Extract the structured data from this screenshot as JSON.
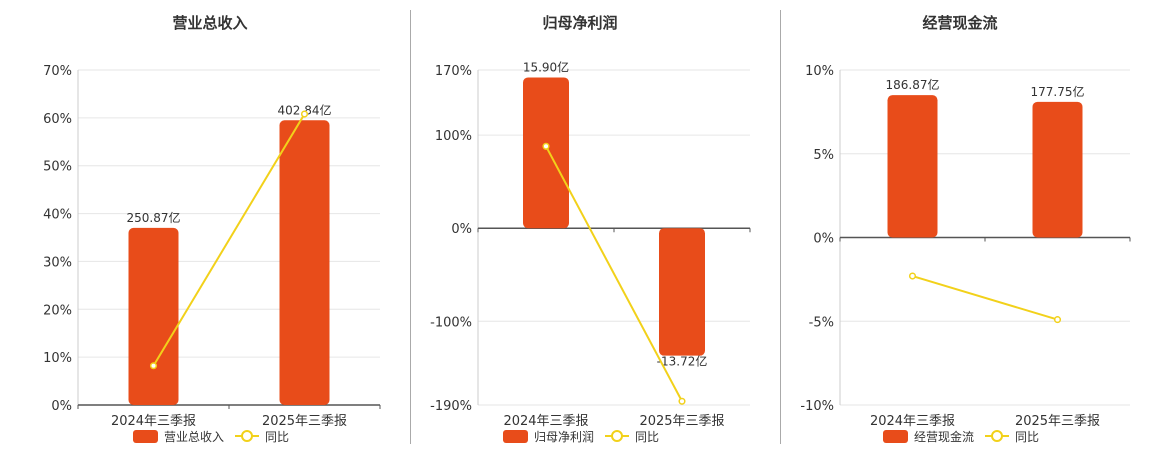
{
  "legend": {
    "growth_label": "同比"
  },
  "colors": {
    "bar": "#E84C1A",
    "line": "#F2D11A",
    "grid": "#e6e6e6",
    "axis": "#555555",
    "divider": "#aaaaaa"
  },
  "chart_data": [
    {
      "type": "bar",
      "title": "营业总收入",
      "categories": [
        "2024年三季报",
        "2025年三季报"
      ],
      "bar_series": {
        "name": "营业总收入",
        "values": [
          37,
          59.5
        ],
        "labels": [
          "250.87亿",
          "402.84亿"
        ]
      },
      "line_series": {
        "name": "同比",
        "values": [
          8.2,
          60.8
        ]
      },
      "yticks": [
        0,
        10,
        20,
        30,
        40,
        50,
        60,
        70
      ],
      "ytick_labels": [
        "0%",
        "10%",
        "20%",
        "30%",
        "40%",
        "50%",
        "60%",
        "70%"
      ],
      "ylim": [
        0,
        70
      ],
      "grid": true,
      "legend_position": "bottom"
    },
    {
      "type": "bar",
      "title": "归母净利润",
      "categories": [
        "2024年三季报",
        "2025年三季报"
      ],
      "bar_series": {
        "name": "归母净利润",
        "values": [
          162,
          -137
        ],
        "labels": [
          "15.90亿",
          "-13.72亿"
        ]
      },
      "line_series": {
        "name": "同比",
        "values": [
          88,
          -186
        ]
      },
      "yticks": [
        -190,
        -100,
        0,
        100,
        170
      ],
      "ytick_labels": [
        "-190%",
        "-100%",
        "0%",
        "100%",
        "170%"
      ],
      "ylim": [
        -190,
        170
      ],
      "grid": true,
      "legend_position": "bottom"
    },
    {
      "type": "bar",
      "title": "经营现金流",
      "categories": [
        "2024年三季报",
        "2025年三季报"
      ],
      "bar_series": {
        "name": "经营现金流",
        "values": [
          8.5,
          8.1
        ],
        "labels": [
          "186.87亿",
          "177.75亿"
        ]
      },
      "line_series": {
        "name": "同比",
        "values": [
          -2.3,
          -4.9
        ]
      },
      "yticks": [
        -10,
        -5,
        0,
        5,
        10
      ],
      "ytick_labels": [
        "-10%",
        "-5%",
        "0%",
        "5%",
        "10%"
      ],
      "ylim": [
        -10,
        10
      ],
      "grid": true,
      "legend_position": "bottom"
    }
  ]
}
